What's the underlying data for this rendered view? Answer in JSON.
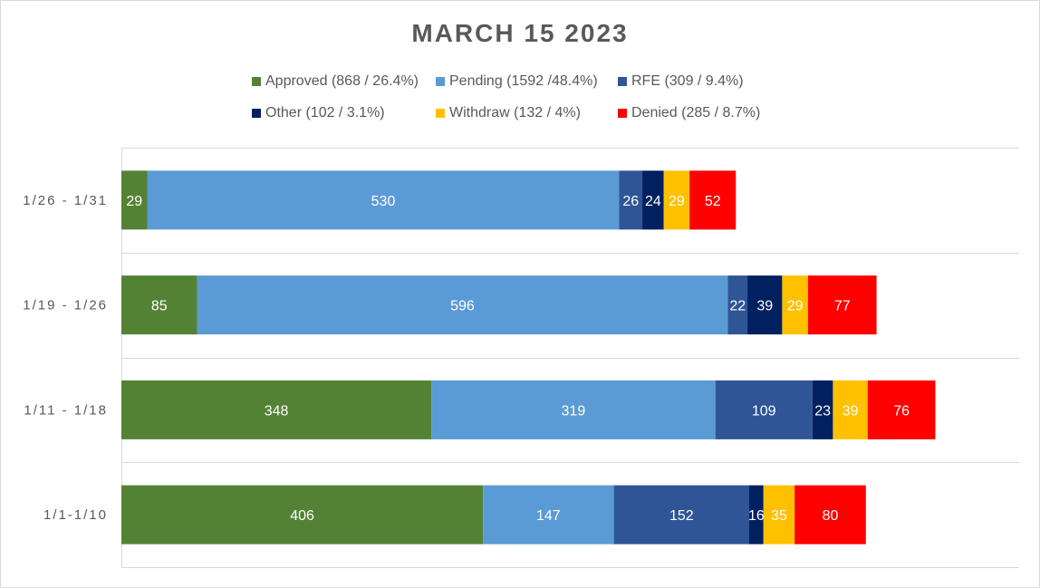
{
  "chart_data": {
    "type": "bar",
    "orientation": "horizontal",
    "stacked": true,
    "title": "MARCH 15 2023",
    "categories": [
      "1/26 - 1/31",
      "1/19 - 1/26",
      "1/11 - 1/18",
      "1/1-1/10"
    ],
    "series": [
      {
        "name": "Approved (868 / 26.4%)",
        "color": "#548235",
        "values": [
          29,
          85,
          348,
          406
        ]
      },
      {
        "name": "Pending (1592 /48.4%)",
        "color": "#5b9bd5",
        "values": [
          530,
          596,
          319,
          147
        ]
      },
      {
        "name": "RFE (309 / 9.4%)",
        "color": "#2f5597",
        "values": [
          26,
          22,
          109,
          152
        ]
      },
      {
        "name": "Other (102 / 3.1%)",
        "color": "#002060",
        "values": [
          24,
          39,
          23,
          16
        ]
      },
      {
        "name": "Withdraw (132 / 4%)",
        "color": "#ffc000",
        "values": [
          29,
          29,
          39,
          35
        ]
      },
      {
        "name": "Denied (285 / 8.7%)",
        "color": "#ff0000",
        "values": [
          52,
          77,
          76,
          80
        ]
      }
    ],
    "xlim": [
      0,
      1000
    ],
    "grid": true,
    "legend_position": "top"
  }
}
